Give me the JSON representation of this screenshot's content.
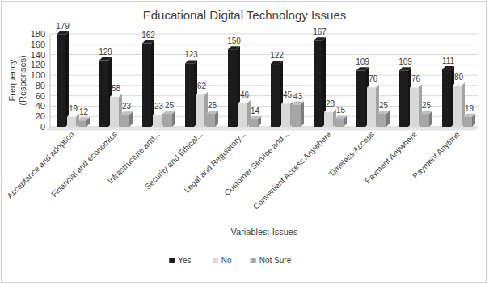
{
  "chart_data": {
    "type": "bar",
    "title": "Educational Digital Technology Issues",
    "x_label": "Variables: Issues",
    "y_label": "Frequency (Responses)",
    "categories": [
      "Acceptance and adoption",
      "Financial and economics",
      "Infrastructure and...",
      "Security and Ethical...",
      "Legal and Regulatory...",
      "Customer Service and...",
      "Convenient Access Anywhere",
      "Timeless Access",
      "Payment Anywhere",
      "Payment Anytime"
    ],
    "series": [
      {
        "name": "Yes",
        "color": "#1c1c1c",
        "values": [
          179,
          129,
          162,
          123,
          150,
          122,
          167,
          109,
          109,
          111
        ]
      },
      {
        "name": "No",
        "color": "#d9d9d9",
        "values": [
          19,
          58,
          23,
          62,
          46,
          45,
          28,
          76,
          76,
          80
        ]
      },
      {
        "name": "Not Sure",
        "color": "#a6a6a6",
        "values": [
          12,
          23,
          25,
          25,
          14,
          43,
          15,
          25,
          25,
          19
        ]
      }
    ],
    "ylim": [
      0,
      180
    ],
    "yticks": [
      0,
      20,
      40,
      60,
      80,
      100,
      120,
      140,
      160,
      180
    ],
    "grid": true,
    "legend": "bottom",
    "data_labels": true
  }
}
